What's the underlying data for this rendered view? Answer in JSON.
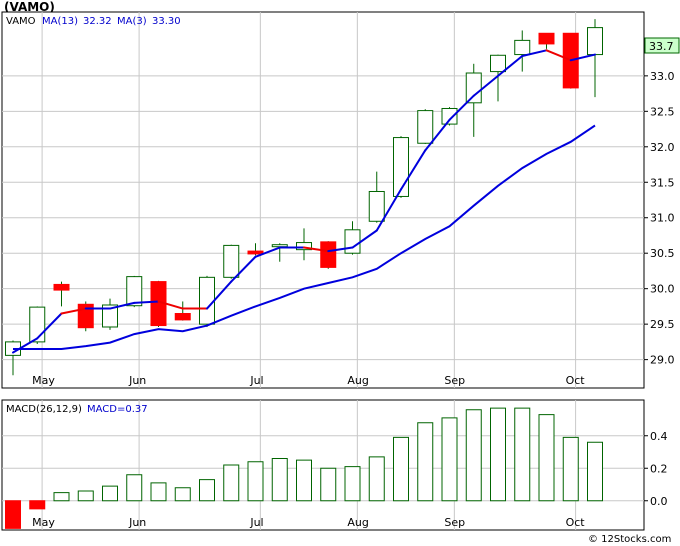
{
  "title": "(VAMO)",
  "watermark": "© 12Stocks.com",
  "colors": {
    "up": "#006400",
    "down": "#ff0000",
    "ma_fast": "#0000dd",
    "ma_fast_down": "#ee0000",
    "ma_slow": "#0000dd",
    "grid": "#c8c8c8",
    "last_box": "#ccffcc"
  },
  "chart_data": [
    {
      "type": "candlestick",
      "legend": {
        "ticker": "VAMO",
        "ma13_label": "MA(13)",
        "ma13_value": "32.32",
        "ma3_label": "MA(3)",
        "ma3_value": "33.30"
      },
      "last_price_label": "33.7",
      "ylim": [
        28.6,
        33.9
      ],
      "y_ticks": [
        "29.0",
        "29.5",
        "30.0",
        "30.5",
        "31.0",
        "31.5",
        "32.0",
        "32.5",
        "33.0"
      ],
      "y_tick_values": [
        29.0,
        29.5,
        30.0,
        30.5,
        31.0,
        31.5,
        32.0,
        32.5,
        33.0
      ],
      "x_labels": [
        "May",
        "Jun",
        "Jul",
        "Aug",
        "Sep",
        "Oct"
      ],
      "x_label_index": [
        1.2,
        5.2,
        10.2,
        14.2,
        18.2,
        23.2
      ],
      "candles": [
        {
          "o": 29.06,
          "h": 29.27,
          "l": 28.78,
          "c": 29.25
        },
        {
          "o": 29.25,
          "h": 29.75,
          "l": 29.22,
          "c": 29.74
        },
        {
          "o": 30.06,
          "h": 30.1,
          "l": 29.75,
          "c": 29.98
        },
        {
          "o": 29.78,
          "h": 29.82,
          "l": 29.4,
          "c": 29.45
        },
        {
          "o": 29.46,
          "h": 29.86,
          "l": 29.42,
          "c": 29.77
        },
        {
          "o": 29.76,
          "h": 30.18,
          "l": 29.74,
          "c": 30.17
        },
        {
          "o": 30.1,
          "h": 30.11,
          "l": 29.46,
          "c": 29.48
        },
        {
          "o": 29.65,
          "h": 29.82,
          "l": 29.55,
          "c": 29.56
        },
        {
          "o": 29.5,
          "h": 30.18,
          "l": 29.46,
          "c": 30.16
        },
        {
          "o": 30.16,
          "h": 30.62,
          "l": 30.14,
          "c": 30.61
        },
        {
          "o": 30.53,
          "h": 30.64,
          "l": 30.47,
          "c": 30.49
        },
        {
          "o": 30.6,
          "h": 30.64,
          "l": 30.38,
          "c": 30.62
        },
        {
          "o": 30.55,
          "h": 30.85,
          "l": 30.4,
          "c": 30.65
        },
        {
          "o": 30.66,
          "h": 30.67,
          "l": 30.28,
          "c": 30.3
        },
        {
          "o": 30.5,
          "h": 30.95,
          "l": 30.48,
          "c": 30.83
        },
        {
          "o": 30.95,
          "h": 31.65,
          "l": 30.93,
          "c": 31.37
        },
        {
          "o": 31.3,
          "h": 32.15,
          "l": 31.28,
          "c": 32.13
        },
        {
          "o": 32.05,
          "h": 32.53,
          "l": 32.04,
          "c": 32.51
        },
        {
          "o": 32.32,
          "h": 32.56,
          "l": 32.3,
          "c": 32.54
        },
        {
          "o": 32.62,
          "h": 33.17,
          "l": 32.14,
          "c": 33.04
        },
        {
          "o": 33.06,
          "h": 33.3,
          "l": 32.64,
          "c": 33.29
        },
        {
          "o": 33.3,
          "h": 33.64,
          "l": 33.06,
          "c": 33.5
        },
        {
          "o": 33.6,
          "h": 33.6,
          "l": 33.38,
          "c": 33.45
        },
        {
          "o": 33.6,
          "h": 33.6,
          "l": 32.82,
          "c": 32.83
        },
        {
          "o": 33.3,
          "h": 33.8,
          "l": 32.7,
          "c": 33.68
        }
      ],
      "ma_fast": [
        29.1,
        29.3,
        29.65,
        29.72,
        29.72,
        29.8,
        29.82,
        29.72,
        29.72,
        30.1,
        30.45,
        30.58,
        30.58,
        30.53,
        30.58,
        30.82,
        31.4,
        31.95,
        32.38,
        32.72,
        33.0,
        33.28,
        33.36,
        33.22,
        33.3
      ],
      "ma_fast_color_up": [
        true,
        true,
        true,
        false,
        true,
        true,
        true,
        false,
        false,
        true,
        true,
        true,
        true,
        false,
        true,
        true,
        true,
        true,
        true,
        true,
        true,
        true,
        true,
        false,
        true
      ],
      "ma_slow": [
        29.15,
        29.15,
        29.15,
        29.19,
        29.24,
        29.36,
        29.43,
        29.4,
        29.48,
        29.62,
        29.75,
        29.87,
        30.0,
        30.08,
        30.16,
        30.28,
        30.5,
        30.7,
        30.88,
        31.17,
        31.45,
        31.7,
        31.9,
        32.07,
        32.3
      ]
    },
    {
      "type": "bar",
      "legend": {
        "label": "MACD(26,12,9)",
        "value_label": "MACD=0.37"
      },
      "ylim": [
        -0.18,
        0.62
      ],
      "y_ticks": [
        "0.4",
        "0.2",
        "0.0"
      ],
      "y_tick_values": [
        0.4,
        0.2,
        0.0
      ],
      "x_labels": [
        "May",
        "Jun",
        "Jul",
        "Aug",
        "Sep",
        "Oct"
      ],
      "x_label_index": [
        1.2,
        5.2,
        10.2,
        14.2,
        18.2,
        23.2
      ],
      "values": [
        -0.17,
        -0.05,
        0.05,
        0.06,
        0.09,
        0.16,
        0.11,
        0.08,
        0.13,
        0.22,
        0.24,
        0.26,
        0.25,
        0.2,
        0.21,
        0.27,
        0.39,
        0.48,
        0.51,
        0.56,
        0.57,
        0.57,
        0.53,
        0.39,
        0.36
      ]
    }
  ]
}
